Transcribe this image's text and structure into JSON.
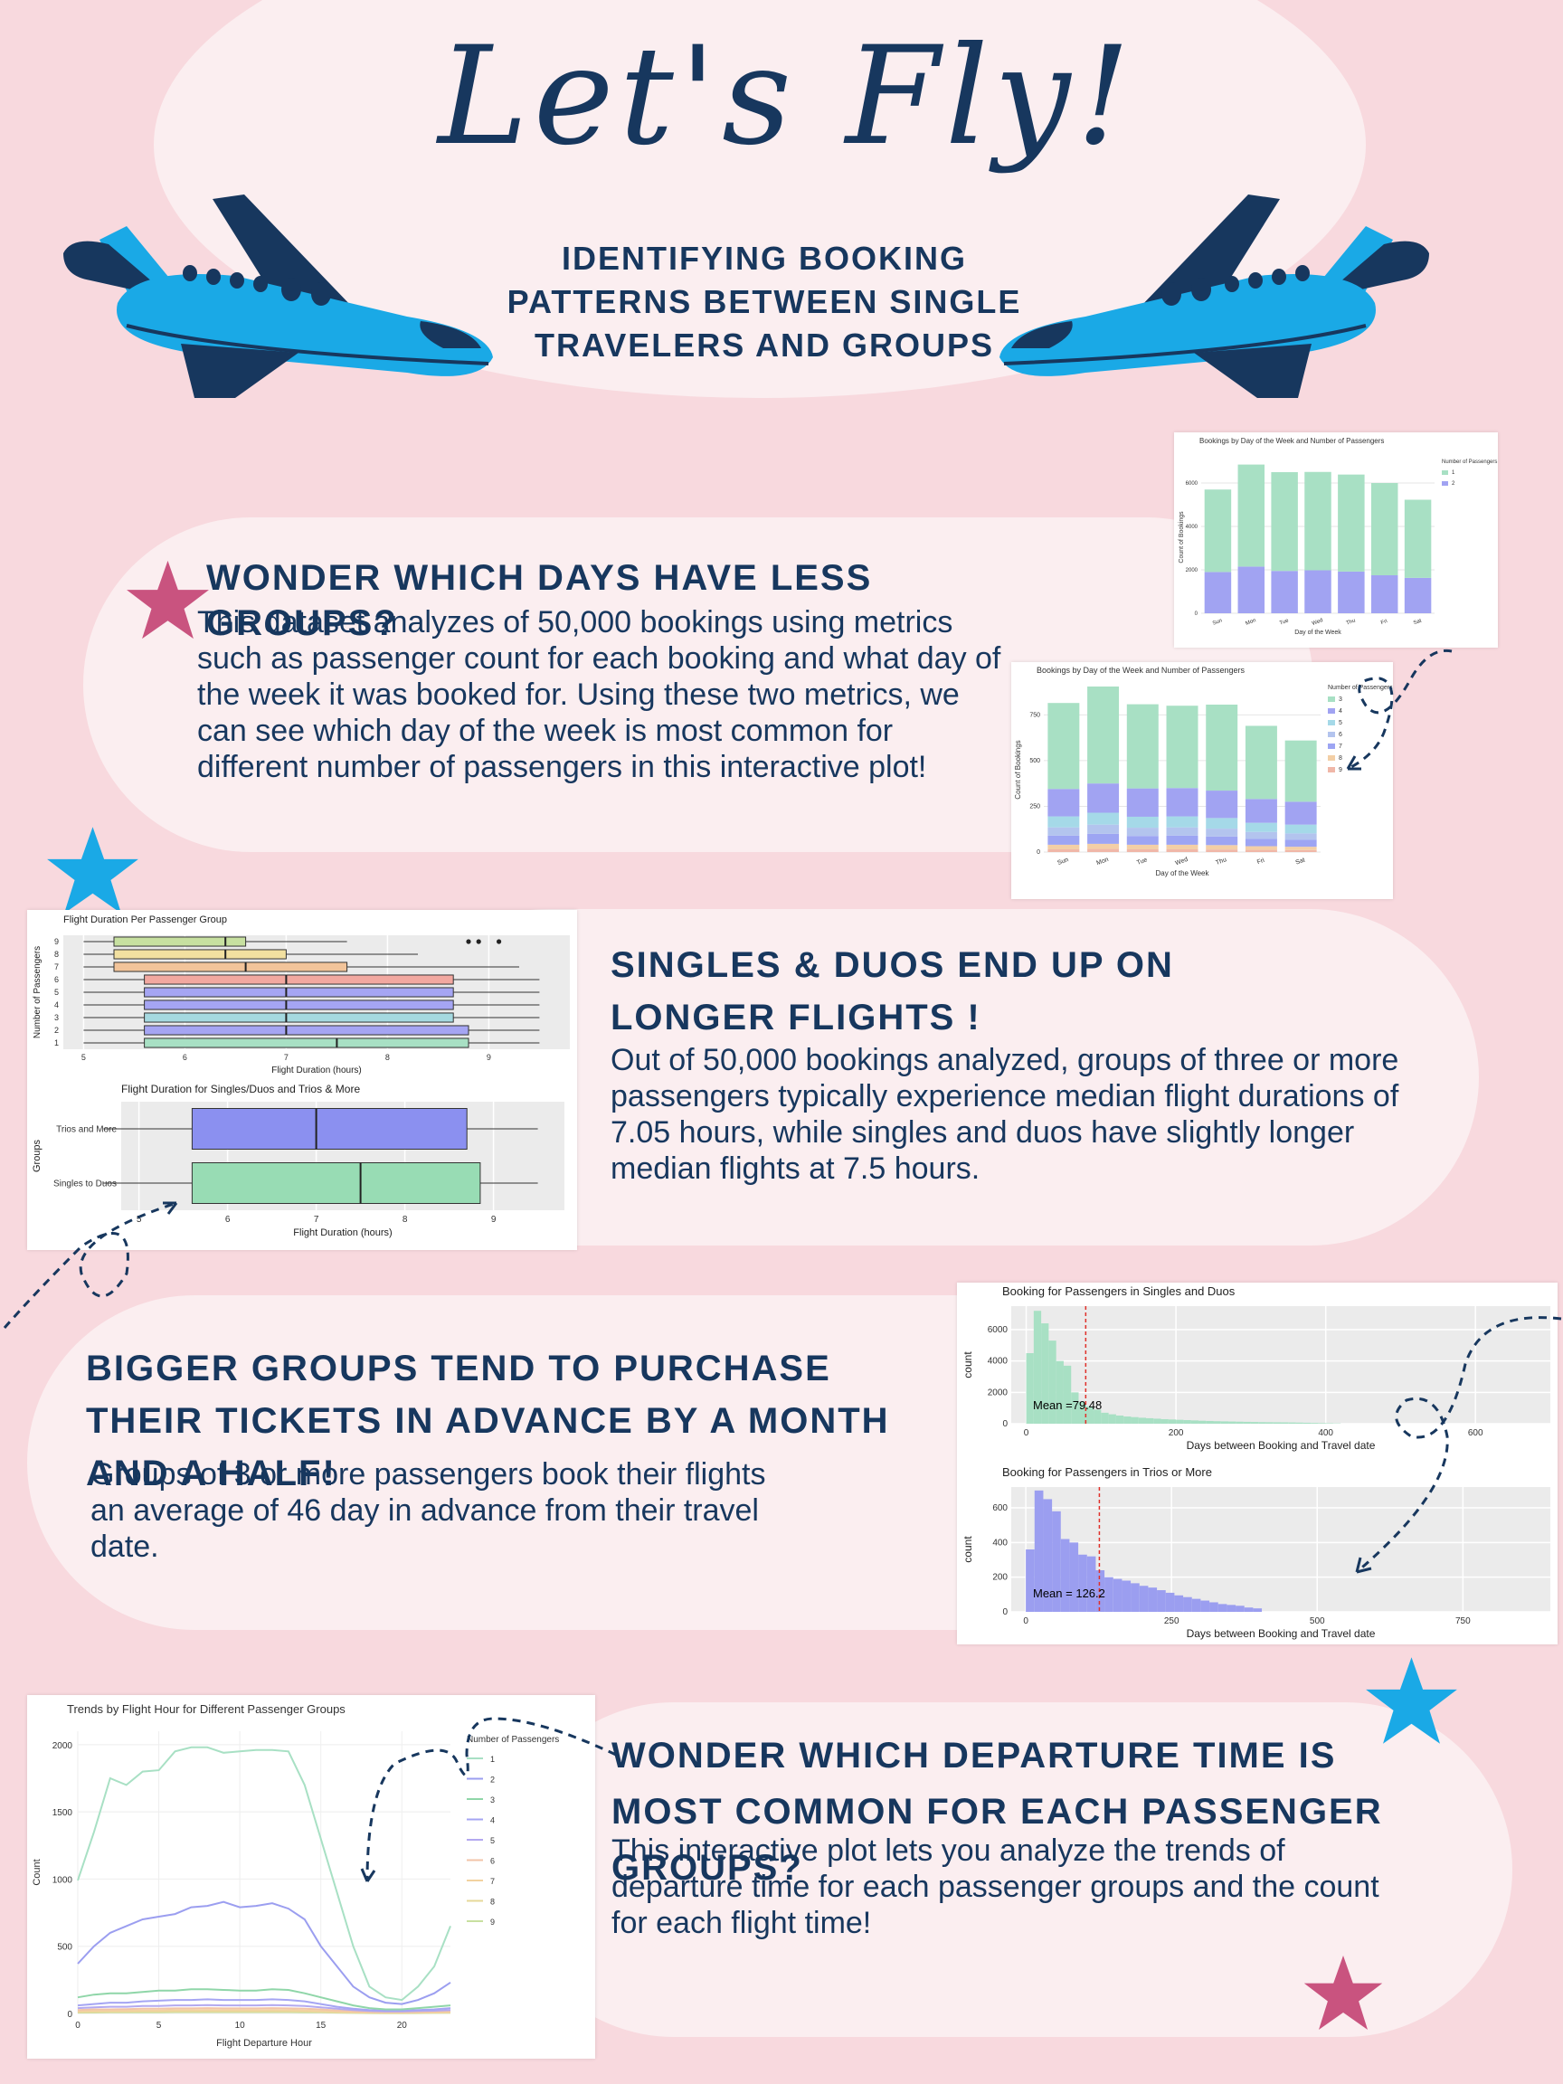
{
  "header": {
    "title": "Let's Fly!",
    "subtitle": "Identifying booking patterns between single travelers and groups"
  },
  "sections": [
    {
      "heading": "Wonder which days have less groups?",
      "body": "This dataset analyzes of 50,000 bookings using metrics such as passenger count for each booking and what day of the week it was booked for. Using these two metrics, we can see which day of the week is most common for different number of passengers in this interactive plot!"
    },
    {
      "heading": "Singles & Duos end up on longer flights !",
      "body": "Out of 50,000 bookings analyzed, groups of three or more passengers typically experience median flight durations of 7.05 hours, while singles and duos have slightly longer median flights at 7.5 hours."
    },
    {
      "heading": "Bigger groups tend to purchase their tickets in advance by a month and a half!",
      "body": "Groups of 3 or more passengers book their flights an average of 46 day in advance from their travel date."
    },
    {
      "heading": "Wonder which departure time is most common for each passenger groups?",
      "body": "This interactive plot lets you analyze the trends of departure time for each passenger groups and the count for each flight time!"
    }
  ],
  "colors": {
    "background": "#f8d9de",
    "panel": "#fbeef0",
    "navy": "#17375e",
    "plane": "#1aa9e6",
    "star_blue": "#1aa9e6",
    "star_pink": "#c9537f"
  },
  "icons": [
    "airplane-left-icon",
    "airplane-right-icon",
    "star-pink-icon",
    "star-blue-icon",
    "dashed-arrow-icon"
  ],
  "chart_data": [
    {
      "type": "bar",
      "title": "Bookings by Day of the Week and Number of Passengers",
      "xlabel": "Day of the Week",
      "ylabel": "Count of Bookings",
      "legend_title": "Number of Passengers",
      "legend_position": "right",
      "categories": [
        "Sun",
        "Mon",
        "Tue",
        "Wed",
        "Thu",
        "Fri",
        "Sat"
      ],
      "yticks": [
        "0",
        "2000",
        "4000",
        "6000"
      ],
      "ylim": [
        0,
        7000
      ],
      "stacked": true,
      "series": [
        {
          "name": "2",
          "color": "#a1a3f2",
          "values": [
            1900,
            2150,
            1950,
            1980,
            1920,
            1750,
            1630
          ]
        },
        {
          "name": "1",
          "color": "#a8e0c4",
          "values": [
            3800,
            4700,
            4550,
            4530,
            4470,
            4250,
            3600
          ]
        }
      ]
    },
    {
      "type": "bar",
      "title": "Bookings by Day of the Week and Number of Passengers",
      "xlabel": "Day of the Week",
      "ylabel": "Count of Bookings",
      "legend_title": "Number of Passengers",
      "legend_position": "right",
      "categories": [
        "Sun",
        "Mon",
        "Tue",
        "Wed",
        "Thu",
        "Fri",
        "Sat"
      ],
      "yticks": [
        "0",
        "250",
        "500",
        "750"
      ],
      "ylim": [
        0,
        900
      ],
      "stacked": true,
      "series": [
        {
          "name": "9",
          "color": "#f0b7a8",
          "values": [
            15,
            17,
            15,
            15,
            14,
            12,
            11
          ]
        },
        {
          "name": "8",
          "color": "#f3cfa6",
          "values": [
            25,
            28,
            25,
            25,
            24,
            20,
            18
          ]
        },
        {
          "name": "7",
          "color": "#9da5f3",
          "values": [
            50,
            55,
            48,
            50,
            47,
            40,
            38
          ]
        },
        {
          "name": "6",
          "color": "#b3c4ee",
          "values": [
            45,
            50,
            45,
            45,
            43,
            38,
            35
          ]
        },
        {
          "name": "5",
          "color": "#a5d9e8",
          "values": [
            60,
            65,
            60,
            60,
            58,
            50,
            48
          ]
        },
        {
          "name": "4",
          "color": "#a1a3f2",
          "values": [
            150,
            160,
            155,
            155,
            150,
            130,
            125
          ]
        },
        {
          "name": "3",
          "color": "#a8e0c4",
          "values": [
            470,
            530,
            460,
            450,
            470,
            400,
            335
          ]
        }
      ]
    },
    {
      "type": "boxplot",
      "title": "Flight Duration Per Passenger Group",
      "xlabel": "Flight Duration (hours)",
      "ylabel": "Number of Passengers",
      "xticks": [
        "5",
        "6",
        "7",
        "8",
        "9"
      ],
      "xlim": [
        4.8,
        9.8
      ],
      "groups": [
        {
          "label": "9",
          "color": "#c7e0a0",
          "min": 5.0,
          "q1": 5.3,
          "median": 6.4,
          "q3": 6.6,
          "max": 7.6,
          "outliers": [
            8.8,
            8.9,
            9.1
          ]
        },
        {
          "label": "8",
          "color": "#f2e0a0",
          "min": 5.0,
          "q1": 5.3,
          "median": 6.4,
          "q3": 7.0,
          "max": 8.3,
          "outliers": []
        },
        {
          "label": "7",
          "color": "#f2c49a",
          "min": 5.0,
          "q1": 5.3,
          "median": 6.6,
          "q3": 7.6,
          "max": 9.3,
          "outliers": []
        },
        {
          "label": "6",
          "color": "#f2a8a0",
          "min": 5.0,
          "q1": 5.6,
          "median": 7.0,
          "q3": 8.65,
          "max": 9.5,
          "outliers": []
        },
        {
          "label": "5",
          "color": "#a5a5f3",
          "min": 5.0,
          "q1": 5.6,
          "median": 7.0,
          "q3": 8.65,
          "max": 9.5,
          "outliers": []
        },
        {
          "label": "4",
          "color": "#a5a5f3",
          "min": 5.0,
          "q1": 5.6,
          "median": 7.0,
          "q3": 8.65,
          "max": 9.5,
          "outliers": []
        },
        {
          "label": "3",
          "color": "#a5d9e0",
          "min": 5.0,
          "q1": 5.6,
          "median": 7.0,
          "q3": 8.65,
          "max": 9.5,
          "outliers": []
        },
        {
          "label": "2",
          "color": "#a5a5f3",
          "min": 5.0,
          "q1": 5.6,
          "median": 7.0,
          "q3": 8.8,
          "max": 9.5,
          "outliers": []
        },
        {
          "label": "1",
          "color": "#a8e0c4",
          "min": 5.0,
          "q1": 5.6,
          "median": 7.5,
          "q3": 8.8,
          "max": 9.5,
          "outliers": []
        }
      ]
    },
    {
      "type": "boxplot",
      "title": "Flight Duration for Singles/Duos and Trios & More",
      "xlabel": "Flight Duration (hours)",
      "ylabel": "Groups",
      "xticks": [
        "5",
        "6",
        "7",
        "8",
        "9"
      ],
      "xlim": [
        4.8,
        9.8
      ],
      "groups": [
        {
          "label": "Trios and More",
          "color": "#8b90f0",
          "min": 4.6,
          "q1": 5.6,
          "median": 7.0,
          "q3": 8.7,
          "max": 9.5
        },
        {
          "label": "Singles to Duos",
          "color": "#98dcb4",
          "min": 4.6,
          "q1": 5.6,
          "median": 7.5,
          "q3": 8.85,
          "max": 9.5
        }
      ]
    },
    {
      "type": "histogram",
      "title": "Booking for Passengers in Singles and Duos",
      "xlabel": "Days between Booking and Travel date",
      "ylabel": "count",
      "annotation": "Mean =79.48",
      "mean": 79.48,
      "color": "#a8e0c4",
      "xticks": [
        "0",
        "200",
        "400",
        "600"
      ],
      "yticks": [
        "0",
        "2000",
        "4000",
        "6000"
      ],
      "xlim": [
        -20,
        700
      ],
      "ylim": [
        0,
        7500
      ],
      "bin_width": 10,
      "bin_start": 0,
      "values": [
        4500,
        7200,
        6400,
        5300,
        4000,
        3700,
        2000,
        1400,
        1100,
        900,
        700,
        600,
        520,
        460,
        420,
        380,
        350,
        320,
        290,
        270,
        250,
        230,
        210,
        190,
        175,
        160,
        150,
        140,
        130,
        120,
        110,
        100,
        95,
        90,
        85,
        80,
        70,
        60,
        50,
        40,
        30,
        20
      ]
    },
    {
      "type": "histogram",
      "title": "Booking for Passengers in Trios or More",
      "xlabel": "Days between Booking and Travel date",
      "ylabel": "count",
      "annotation": "Mean = 126.2",
      "mean": 126.2,
      "color": "#9b9ef0",
      "xticks": [
        "0",
        "250",
        "500",
        "750"
      ],
      "yticks": [
        "0",
        "200",
        "400",
        "600"
      ],
      "xlim": [
        -25,
        900
      ],
      "ylim": [
        0,
        720
      ],
      "bin_width": 15,
      "bin_start": 0,
      "values": [
        360,
        700,
        650,
        580,
        420,
        400,
        330,
        320,
        240,
        200,
        190,
        180,
        165,
        150,
        140,
        125,
        110,
        95,
        85,
        75,
        65,
        55,
        45,
        40,
        35,
        25,
        20
      ]
    },
    {
      "type": "line",
      "title": "Trends by Flight Hour for Different Passenger Groups",
      "xlabel": "Flight Departure Hour",
      "ylabel": "Count",
      "legend_title": "Number of Passengers",
      "legend_position": "right",
      "xticks": [
        "0",
        "5",
        "10",
        "15",
        "20"
      ],
      "yticks": [
        "0",
        "500",
        "1000",
        "1500",
        "2000"
      ],
      "xlim": [
        0,
        23
      ],
      "ylim": [
        0,
        2100
      ],
      "x": [
        0,
        1,
        2,
        3,
        4,
        5,
        6,
        7,
        8,
        9,
        10,
        11,
        12,
        13,
        14,
        15,
        16,
        17,
        18,
        19,
        20,
        21,
        22,
        23
      ],
      "series": [
        {
          "name": "1",
          "color": "#a8e0c4",
          "values": [
            990,
            1350,
            1750,
            1700,
            1800,
            1810,
            1950,
            1980,
            1980,
            1940,
            1950,
            1960,
            1960,
            1950,
            1700,
            1300,
            900,
            500,
            200,
            120,
            100,
            200,
            350,
            650
          ]
        },
        {
          "name": "2",
          "color": "#9b9ef0",
          "values": [
            370,
            500,
            600,
            650,
            700,
            720,
            740,
            790,
            800,
            830,
            790,
            800,
            820,
            780,
            700,
            500,
            350,
            200,
            120,
            80,
            70,
            100,
            150,
            230
          ]
        },
        {
          "name": "3",
          "color": "#8fd6a8",
          "values": [
            120,
            140,
            150,
            150,
            160,
            170,
            170,
            180,
            180,
            175,
            170,
            170,
            180,
            175,
            150,
            120,
            90,
            60,
            40,
            30,
            30,
            40,
            50,
            60
          ]
        },
        {
          "name": "4",
          "color": "#a5a5f3",
          "values": [
            60,
            70,
            80,
            80,
            90,
            95,
            100,
            100,
            105,
            100,
            100,
            100,
            105,
            100,
            90,
            70,
            50,
            35,
            25,
            20,
            20,
            25,
            30,
            40
          ]
        },
        {
          "name": "5",
          "color": "#b3a9f0",
          "values": [
            40,
            45,
            50,
            50,
            55,
            55,
            60,
            60,
            62,
            60,
            60,
            60,
            62,
            60,
            55,
            45,
            35,
            25,
            18,
            15,
            15,
            18,
            20,
            25
          ]
        },
        {
          "name": "6",
          "color": "#f2c4a8",
          "values": [
            25,
            30,
            30,
            32,
            35,
            35,
            38,
            38,
            40,
            38,
            38,
            38,
            40,
            38,
            35,
            30,
            22,
            16,
            12,
            10,
            10,
            12,
            14,
            18
          ]
        },
        {
          "name": "7",
          "color": "#f2d2a0",
          "values": [
            15,
            18,
            20,
            20,
            22,
            22,
            24,
            24,
            25,
            24,
            24,
            24,
            25,
            24,
            22,
            18,
            14,
            10,
            8,
            6,
            6,
            8,
            9,
            11
          ]
        },
        {
          "name": "8",
          "color": "#e6d898",
          "values": [
            10,
            12,
            12,
            13,
            14,
            14,
            15,
            15,
            16,
            15,
            15,
            15,
            16,
            15,
            14,
            12,
            9,
            7,
            5,
            4,
            4,
            5,
            6,
            7
          ]
        },
        {
          "name": "9",
          "color": "#c8e0a0",
          "values": [
            6,
            7,
            8,
            8,
            9,
            9,
            10,
            10,
            10,
            10,
            10,
            10,
            10,
            10,
            9,
            8,
            6,
            4,
            3,
            2,
            2,
            3,
            4,
            5
          ]
        }
      ]
    }
  ]
}
